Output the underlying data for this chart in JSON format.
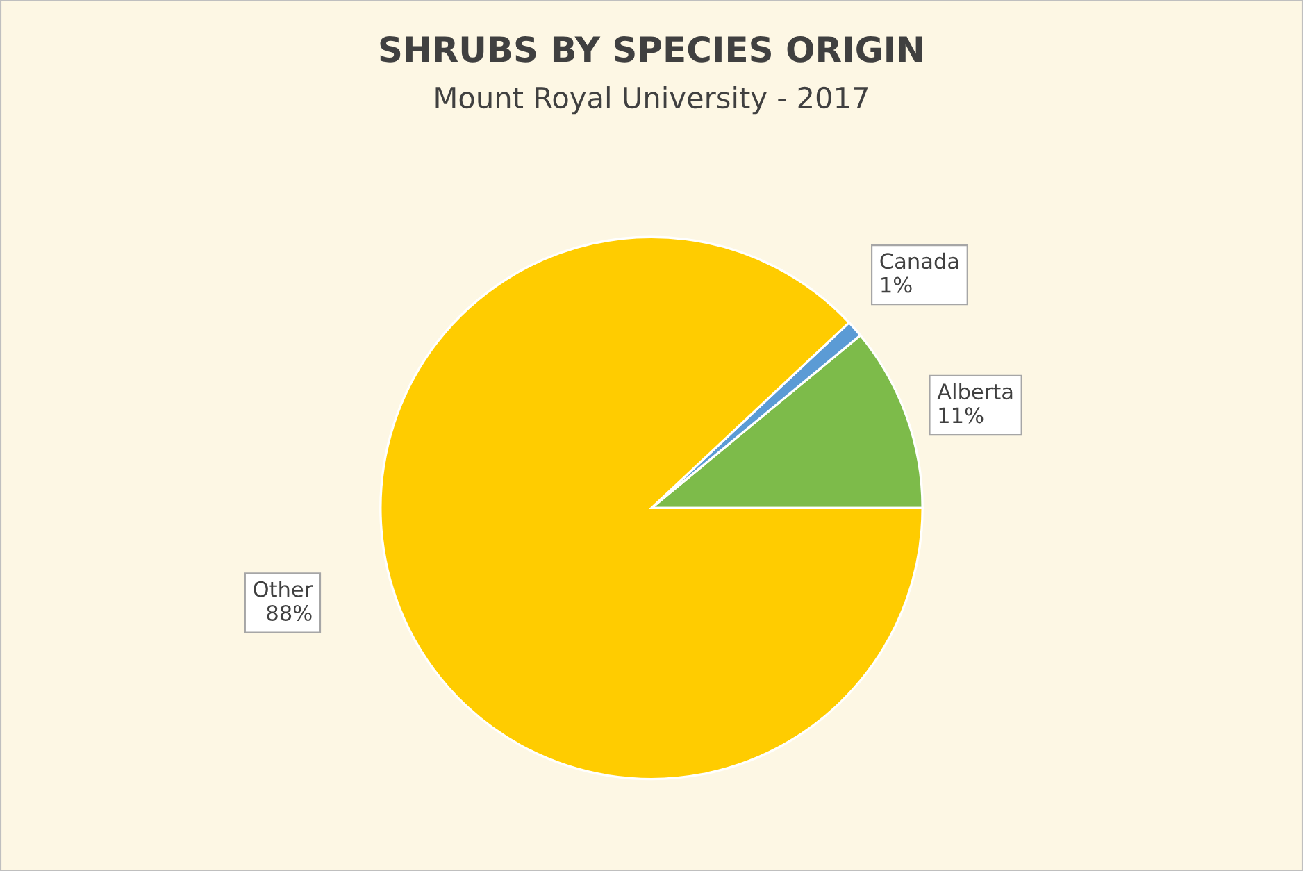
{
  "chart_data": {
    "type": "pie",
    "title": "SHRUBS BY SPECIES ORIGIN",
    "subtitle": "Mount Royal University - 2017",
    "categories": [
      "Alberta",
      "Canada",
      "Other"
    ],
    "values": [
      11,
      1,
      88
    ],
    "value_labels": [
      "11%",
      "1%",
      "88%"
    ],
    "colors": [
      "#7dbb4a",
      "#5b9bd5",
      "#ffcc00"
    ],
    "legend": false
  }
}
